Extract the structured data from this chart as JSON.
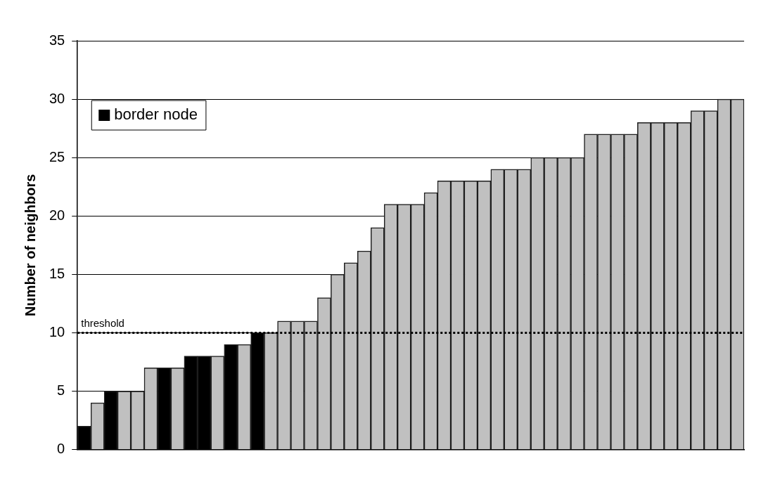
{
  "chart_data": {
    "type": "bar",
    "ylabel": "Number of neighbors",
    "categories": [
      null,
      null,
      null,
      null,
      null,
      null,
      null,
      null,
      null,
      null,
      null,
      null,
      null,
      null,
      null,
      null,
      null,
      null,
      null,
      null,
      null,
      null,
      null,
      null,
      null,
      null,
      null,
      null,
      null,
      null,
      null,
      null,
      null,
      null,
      null,
      null,
      null,
      null,
      null,
      null,
      null,
      null,
      null,
      null,
      null,
      null,
      null,
      null,
      null,
      null
    ],
    "series": [
      {
        "name": "border node",
        "color": "#000000",
        "values": [
          2,
          null,
          5,
          null,
          null,
          null,
          7,
          null,
          8,
          8,
          null,
          9,
          null,
          10,
          null,
          null,
          null,
          null,
          null,
          null,
          null,
          null,
          null,
          null,
          null,
          null,
          null,
          null,
          null,
          null,
          null,
          null,
          null,
          null,
          null,
          null,
          null,
          null,
          null,
          null,
          null,
          null,
          null,
          null,
          null,
          null,
          null,
          null,
          null,
          null
        ]
      },
      {
        "color": "#c0c0c0",
        "values": [
          null,
          4,
          null,
          5,
          5,
          7,
          null,
          7,
          null,
          null,
          8,
          null,
          9,
          null,
          10,
          11,
          11,
          11,
          13,
          15,
          16,
          17,
          19,
          21,
          21,
          21,
          22,
          23,
          23,
          23,
          23,
          24,
          24,
          24,
          25,
          25,
          25,
          25,
          27,
          27,
          27,
          27,
          28,
          28,
          28,
          28,
          29,
          29,
          30,
          30
        ]
      }
    ],
    "ylim": [
      0,
      35
    ],
    "yticks": [
      0,
      5,
      10,
      15,
      20,
      25,
      30,
      35
    ],
    "grid": "y",
    "legend": "top left",
    "ref_lines": [
      {
        "axis": "y",
        "value": 10,
        "label": "threshold",
        "color": "#000000",
        "line_style": "dotted"
      }
    ]
  }
}
